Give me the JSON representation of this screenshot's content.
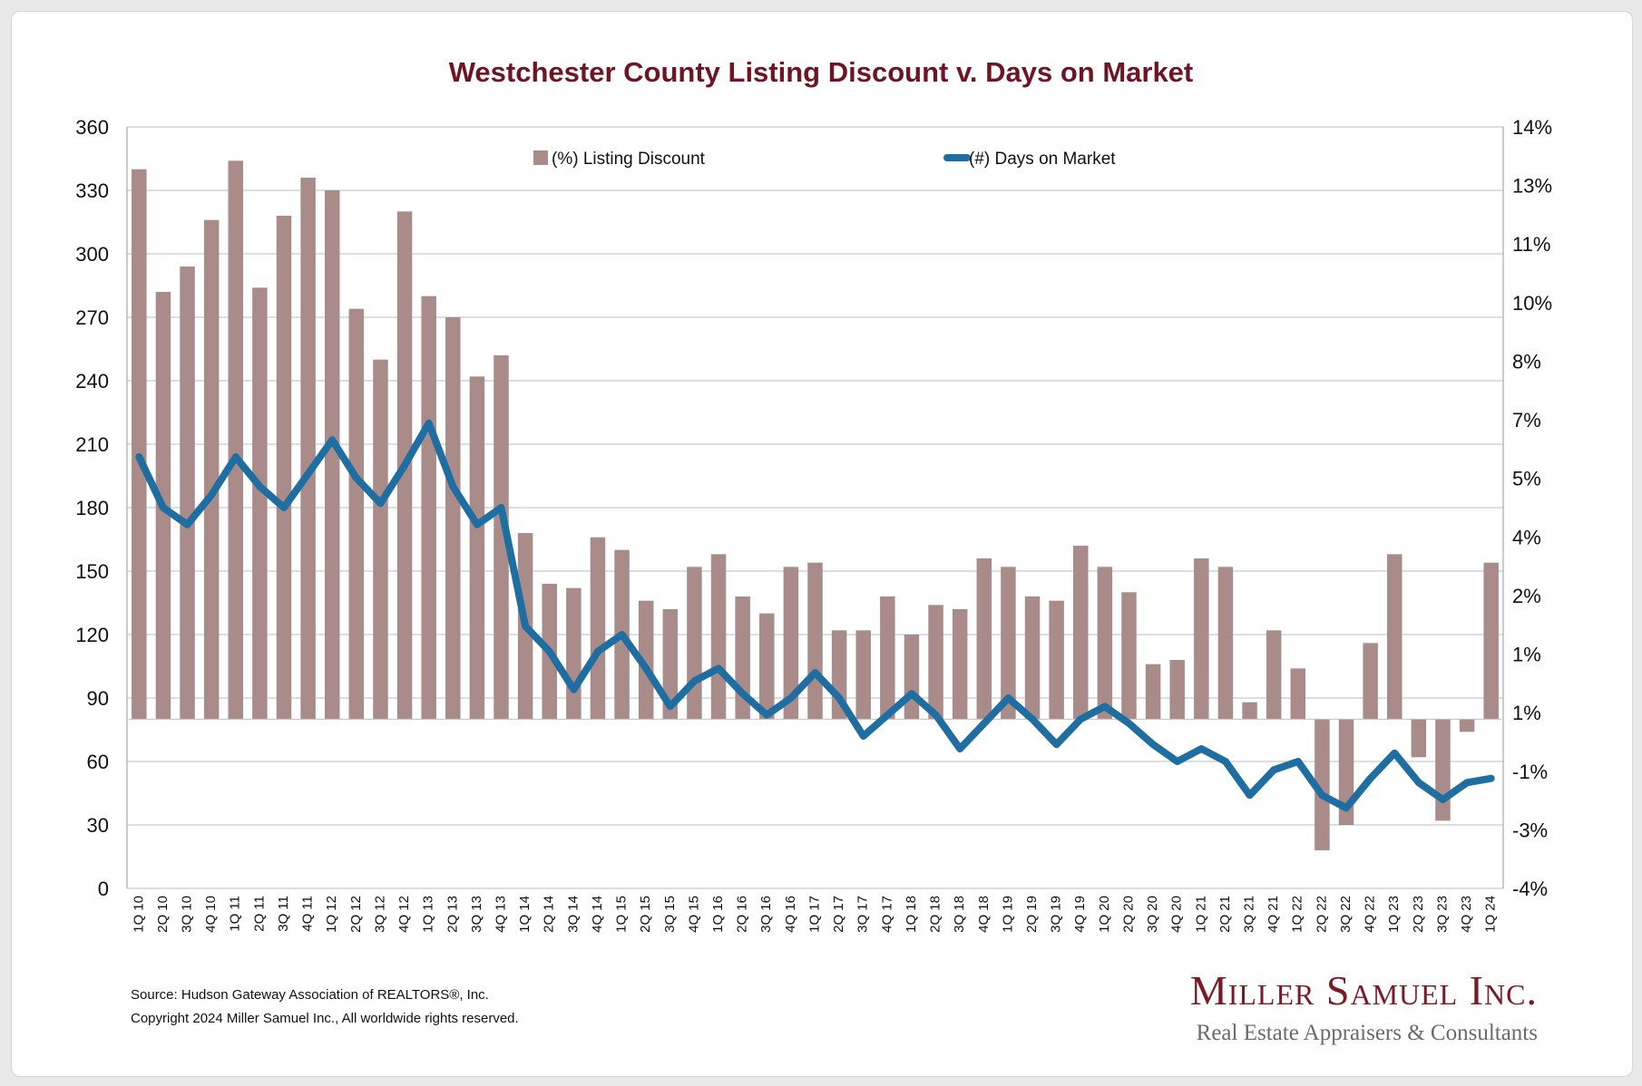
{
  "chart_data": {
    "type": "bar+line",
    "title": "Westchester County Listing Discount v. Days on Market",
    "categories": [
      "1Q 10",
      "2Q 10",
      "3Q 10",
      "4Q 10",
      "1Q 11",
      "2Q 11",
      "3Q 11",
      "4Q 11",
      "1Q 12",
      "2Q 12",
      "3Q 12",
      "4Q 12",
      "1Q 13",
      "2Q 13",
      "3Q 13",
      "4Q 13",
      "1Q 14",
      "2Q 14",
      "3Q 14",
      "4Q 14",
      "1Q 15",
      "2Q 15",
      "3Q 15",
      "4Q 15",
      "1Q 16",
      "2Q 16",
      "3Q 16",
      "4Q 16",
      "1Q 17",
      "2Q 17",
      "3Q 17",
      "4Q 17",
      "1Q 18",
      "2Q 18",
      "3Q 18",
      "4Q 18",
      "1Q 19",
      "2Q 19",
      "3Q 19",
      "4Q 19",
      "1Q 20",
      "2Q 20",
      "3Q 20",
      "4Q 20",
      "1Q 21",
      "2Q 21",
      "3Q 21",
      "4Q 21",
      "1Q 22",
      "2Q 22",
      "3Q 22",
      "4Q 22",
      "1Q 23",
      "2Q 23",
      "3Q 23",
      "4Q 23",
      "1Q 24"
    ],
    "left_axis": {
      "min": 0,
      "max": 360,
      "ticks": [
        "0",
        "30",
        "60",
        "90",
        "120",
        "150",
        "180",
        "210",
        "240",
        "270",
        "300",
        "330",
        "360"
      ]
    },
    "right_axis": {
      "ticks": [
        "-4%",
        "-3%",
        "-1%",
        "1%",
        "1%",
        "2%",
        "4%",
        "5%",
        "7%",
        "8%",
        "10%",
        "11%",
        "13%",
        "14%"
      ]
    },
    "bar_baseline": 80,
    "series": [
      {
        "name": "(%) Listing Discount",
        "type": "bar",
        "color": "#a98c8a",
        "values": [
          340,
          282,
          294,
          316,
          344,
          284,
          318,
          336,
          330,
          274,
          250,
          320,
          280,
          270,
          242,
          252,
          168,
          144,
          142,
          166,
          160,
          136,
          132,
          152,
          158,
          138,
          130,
          152,
          154,
          122,
          122,
          138,
          120,
          134,
          132,
          156,
          152,
          138,
          136,
          162,
          152,
          140,
          106,
          108,
          156,
          152,
          88,
          122,
          104,
          18,
          30,
          116,
          158,
          62,
          32,
          74,
          154
        ]
      },
      {
        "name": "(#) Days on Market",
        "type": "line",
        "color": "#1f6ea1",
        "values": [
          204,
          180,
          172,
          186,
          204,
          190,
          180,
          196,
          212,
          194,
          182,
          200,
          220,
          190,
          172,
          180,
          124,
          112,
          94,
          112,
          120,
          104,
          86,
          98,
          104,
          92,
          82,
          90,
          102,
          90,
          72,
          82,
          92,
          82,
          66,
          78,
          90,
          80,
          68,
          80,
          86,
          78,
          68,
          60,
          66,
          60,
          44,
          56,
          60,
          44,
          38,
          52,
          64,
          50,
          42,
          50,
          52
        ]
      }
    ]
  },
  "footer": {
    "source": "Source: Hudson Gateway Association of REALTORS®, Inc.",
    "copyright": "Copyright 2024 Miller Samuel Inc., All worldwide rights reserved."
  },
  "brand": {
    "name": "Miller Samuel Inc.",
    "tagline": "Real Estate Appraisers & Consultants"
  }
}
